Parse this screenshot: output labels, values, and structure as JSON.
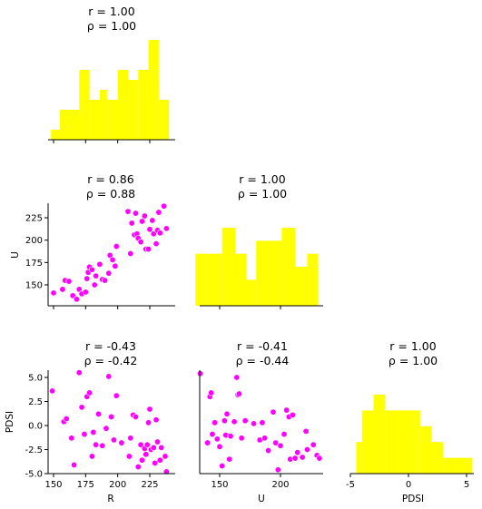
{
  "chart_data": [
    {
      "type": "histogram",
      "panel": "R-R",
      "title": "r = 1.00",
      "subtitle": "ρ = 1.00",
      "bins": [
        [
          148,
          155,
          1
        ],
        [
          155,
          170,
          3
        ],
        [
          170,
          178,
          7
        ],
        [
          178,
          186,
          4
        ],
        [
          186,
          192,
          5
        ],
        [
          192,
          200,
          4
        ],
        [
          200,
          208,
          7
        ],
        [
          208,
          216,
          6
        ],
        [
          216,
          224,
          7
        ],
        [
          224,
          232,
          10
        ],
        [
          232,
          240,
          4
        ]
      ],
      "color": "#ffff00",
      "x_ticks": [
        "150",
        "175",
        "200",
        "225"
      ]
    },
    {
      "type": "scatter",
      "panel": "U-R",
      "title": "r = 0.86",
      "subtitle": "ρ = 0.88",
      "xlabel": "",
      "ylabel": "U",
      "color": "#ff00ff",
      "y_ticks": [
        "150",
        "175",
        "200",
        "225"
      ],
      "points": [
        [
          150,
          141
        ],
        [
          157,
          145
        ],
        [
          159,
          155
        ],
        [
          162,
          154
        ],
        [
          165,
          138
        ],
        [
          168,
          134
        ],
        [
          170,
          145
        ],
        [
          172,
          140
        ],
        [
          175,
          142
        ],
        [
          176,
          157
        ],
        [
          177,
          164
        ],
        [
          178,
          170
        ],
        [
          180,
          167
        ],
        [
          182,
          150
        ],
        [
          183,
          160
        ],
        [
          186,
          173
        ],
        [
          188,
          156
        ],
        [
          190,
          155
        ],
        [
          193,
          163
        ],
        [
          194,
          183
        ],
        [
          196,
          178
        ],
        [
          198,
          171
        ],
        [
          199,
          193
        ],
        [
          208,
          232
        ],
        [
          210,
          185
        ],
        [
          211,
          219
        ],
        [
          213,
          206
        ],
        [
          214,
          230
        ],
        [
          215,
          207
        ],
        [
          216,
          202
        ],
        [
          218,
          198
        ],
        [
          219,
          221
        ],
        [
          221,
          227
        ],
        [
          222,
          190
        ],
        [
          224,
          190
        ],
        [
          225,
          212
        ],
        [
          227,
          222
        ],
        [
          228,
          207
        ],
        [
          230,
          196
        ],
        [
          231,
          211
        ],
        [
          232,
          231
        ],
        [
          233,
          208
        ],
        [
          236,
          238
        ],
        [
          238,
          213
        ]
      ]
    },
    {
      "type": "histogram",
      "panel": "U-U",
      "title": "r = 1.00",
      "subtitle": "ρ = 1.00",
      "bins": [
        [
          130,
          140,
          4
        ],
        [
          140,
          152,
          4
        ],
        [
          152,
          163,
          6
        ],
        [
          163,
          172,
          4
        ],
        [
          172,
          180,
          2
        ],
        [
          180,
          191,
          5
        ],
        [
          191,
          201,
          5
        ],
        [
          201,
          212,
          6
        ],
        [
          212,
          222,
          3
        ],
        [
          222,
          231,
          4
        ]
      ],
      "color": "#ffff00"
    },
    {
      "type": "scatter",
      "panel": "PDSI-R",
      "title": "r = -0.43",
      "subtitle": "ρ = -0.42",
      "xlabel": "R",
      "ylabel": "PDSI",
      "color": "#ff00ff",
      "x_ticks": [
        "150",
        "175",
        "200",
        "225"
      ],
      "y_ticks": [
        "5.0",
        "2.5",
        "0.0",
        "-2.5",
        "-5.0"
      ],
      "points": [
        [
          149,
          3.6
        ],
        [
          158,
          0.4
        ],
        [
          160,
          0.7
        ],
        [
          164,
          -1.3
        ],
        [
          166,
          -4.1
        ],
        [
          170,
          5.5
        ],
        [
          172,
          1.9
        ],
        [
          174,
          -0.9
        ],
        [
          176,
          3.0
        ],
        [
          178,
          3.4
        ],
        [
          180,
          -3.2
        ],
        [
          181,
          -0.7
        ],
        [
          183,
          -2.0
        ],
        [
          185,
          1.2
        ],
        [
          188,
          -2.1
        ],
        [
          191,
          -0.3
        ],
        [
          193,
          5.1
        ],
        [
          195,
          0.9
        ],
        [
          197,
          -1.5
        ],
        [
          199,
          3.1
        ],
        [
          203,
          -1.8
        ],
        [
          209,
          -3.2
        ],
        [
          210,
          -1.3
        ],
        [
          212,
          1.1
        ],
        [
          214,
          0.9
        ],
        [
          216,
          -4.3
        ],
        [
          218,
          -2.0
        ],
        [
          219,
          -3.6
        ],
        [
          221,
          -2.4
        ],
        [
          222,
          -3.0
        ],
        [
          223,
          -2.0
        ],
        [
          224,
          0.3
        ],
        [
          225,
          1.7
        ],
        [
          226,
          -2.5
        ],
        [
          228,
          -2.3
        ],
        [
          229,
          -3.9
        ],
        [
          230,
          0.6
        ],
        [
          231,
          -1.7
        ],
        [
          233,
          -3.6
        ],
        [
          234,
          -2.3
        ],
        [
          237,
          -3.2
        ],
        [
          238,
          -4.8
        ]
      ]
    },
    {
      "type": "scatter",
      "panel": "PDSI-U",
      "title": "r = -0.41",
      "subtitle": "ρ = -0.44",
      "xlabel": "U",
      "ylabel": "",
      "color": "#ff00ff",
      "x_ticks": [
        "150",
        "200"
      ],
      "points": [
        [
          134,
          5.4
        ],
        [
          140,
          -1.8
        ],
        [
          142,
          3.0
        ],
        [
          143,
          3.4
        ],
        [
          144,
          -0.9
        ],
        [
          146,
          0.3
        ],
        [
          148,
          -1.4
        ],
        [
          150,
          -2.2
        ],
        [
          152,
          -4.2
        ],
        [
          154,
          0.5
        ],
        [
          155,
          -1.0
        ],
        [
          156,
          1.2
        ],
        [
          158,
          -3.5
        ],
        [
          159,
          -1.1
        ],
        [
          162,
          0.4
        ],
        [
          164,
          5.0
        ],
        [
          165,
          3.2
        ],
        [
          166,
          3.3
        ],
        [
          168,
          -1.3
        ],
        [
          171,
          0.5
        ],
        [
          178,
          0.2
        ],
        [
          183,
          -1.5
        ],
        [
          185,
          0.3
        ],
        [
          187,
          -1.3
        ],
        [
          190,
          -2.6
        ],
        [
          194,
          1.4
        ],
        [
          196,
          -1.8
        ],
        [
          198,
          -4.6
        ],
        [
          200,
          -2.1
        ],
        [
          203,
          -0.9
        ],
        [
          205,
          1.6
        ],
        [
          207,
          0.9
        ],
        [
          208,
          -3.5
        ],
        [
          210,
          1.1
        ],
        [
          212,
          -3.4
        ],
        [
          214,
          -2.8
        ],
        [
          218,
          -3.3
        ],
        [
          221,
          -0.6
        ],
        [
          222,
          -2.5
        ],
        [
          227,
          -2.0
        ],
        [
          230,
          -3.1
        ],
        [
          232,
          -3.4
        ]
      ]
    },
    {
      "type": "histogram",
      "panel": "PDSI-PDSI",
      "title": "r = 1.00",
      "subtitle": "ρ = 1.00",
      "xlabel": "PDSI",
      "color": "#ffff00",
      "x_ticks": [
        "-5",
        "0",
        "5"
      ],
      "bins": [
        [
          -4.5,
          -4,
          2
        ],
        [
          -4,
          -3,
          4
        ],
        [
          -3,
          -2,
          5
        ],
        [
          -2,
          -1,
          4
        ],
        [
          -1,
          0,
          4
        ],
        [
          0,
          0.5,
          4
        ],
        [
          0.5,
          1,
          4
        ],
        [
          1,
          2,
          3
        ],
        [
          2,
          3,
          2
        ],
        [
          3,
          4,
          1
        ],
        [
          4,
          5,
          1
        ],
        [
          5,
          5.5,
          1
        ]
      ]
    }
  ]
}
